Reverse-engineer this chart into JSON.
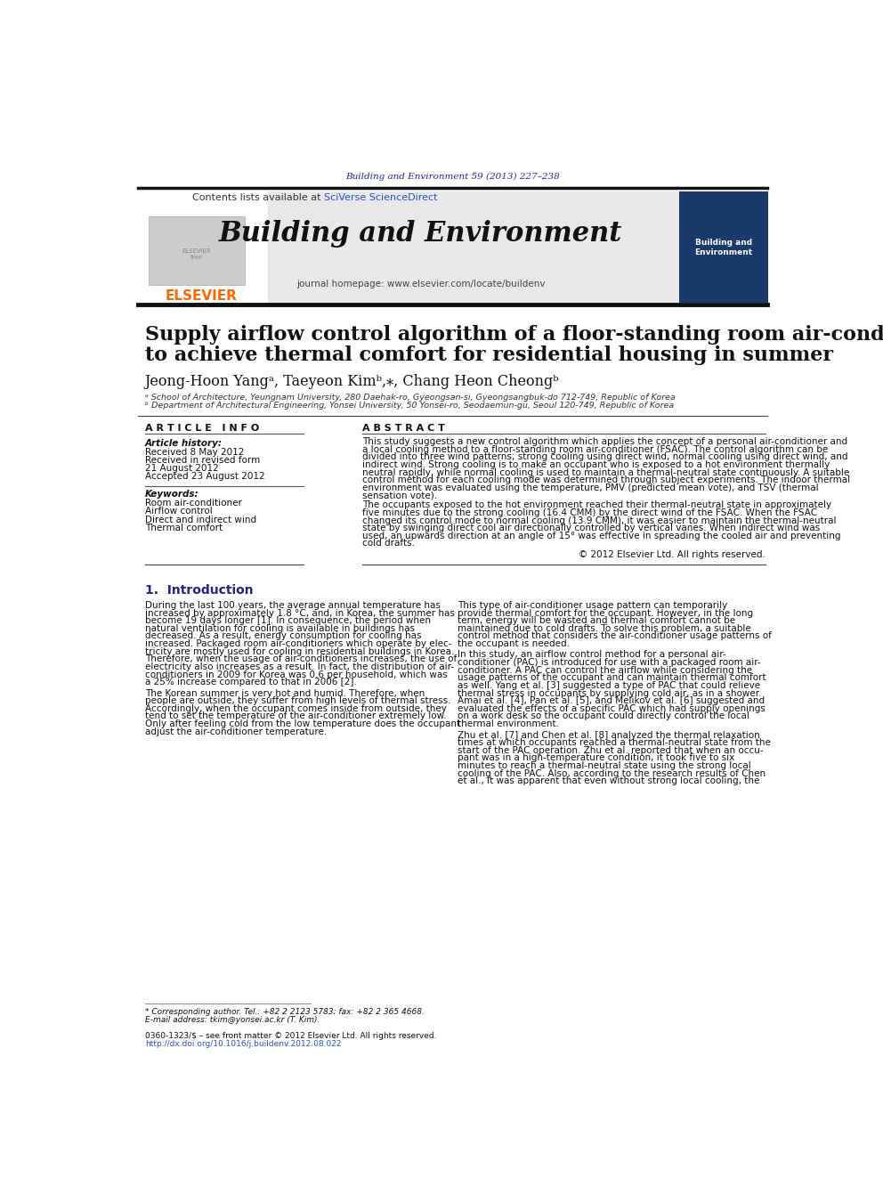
{
  "journal_ref": "Building and Environment 59 (2013) 227–238",
  "journal_name": "Building and Environment",
  "contents_line": "Contents lists available at SciVerse ScienceDirect",
  "journal_homepage": "journal homepage: www.elsevier.com/locate/buildenv",
  "paper_title_line1": "Supply airflow control algorithm of a floor-standing room air-conditioner",
  "paper_title_line2": "to achieve thermal comfort for residential housing in summer",
  "authors": "Jeong-Hoon Yangᵃ, Taeyeon Kimᵇ,⁎, Chang Heon Cheongᵇ",
  "affil_a": "ᵃ School of Architecture, Yeungnam University, 280 Daehak-ro, Gyeongsan-si, Gyeongsangbuk-do 712-749, Republic of Korea",
  "affil_b": "ᵇ Department of Architectural Engineering, Yonsei University, 50 Yonsei-ro, Seodaemun-gu, Seoul 120-749, Republic of Korea",
  "article_info_title": "A R T I C L E   I N F O",
  "article_history_label": "Article history:",
  "received": "Received 8 May 2012",
  "received_revised": "Received in revised form",
  "revised_date": "21 August 2012",
  "accepted": "Accepted 23 August 2012",
  "keywords_label": "Keywords:",
  "keywords": [
    "Room air-conditioner",
    "Airflow control",
    "Direct and indirect wind",
    "Thermal comfort"
  ],
  "abstract_title": "A B S T R A C T",
  "abstract_p1": "This study suggests a new control algorithm which applies the concept of a personal air-conditioner and\na local cooling method to a floor-standing room air-conditioner (FSAC). The control algorithm can be\ndivided into three wind patterns; strong cooling using direct wind, normal cooling using direct wind, and\nindirect wind. Strong cooling is to make an occupant who is exposed to a hot environment thermally\nneutral rapidly, while normal cooling is used to maintain a thermal-neutral state continuously. A suitable\ncontrol method for each cooling mode was determined through subject experiments. The indoor thermal\nenvironment was evaluated using the temperature, PMV (predicted mean vote), and TSV (thermal\nsensation vote).",
  "abstract_p2": "   The occupants exposed to the hot environment reached their thermal-neutral state in approximately\nfive minutes due to the strong cooling (16.4 CMM) by the direct wind of the FSAC. When the FSAC\nchanged its control mode to normal cooling (13.9 CMM), it was easier to maintain the thermal-neutral\nstate by swinging direct cool air directionally controlled by vertical vanes. When indirect wind was\nused, an upwards direction at an angle of 15° was effective in spreading the cooled air and preventing\ncold drafts.",
  "copyright": "© 2012 Elsevier Ltd. All rights reserved.",
  "section1_title": "1.  Introduction",
  "intro_col1_p1": "   During the last 100 years, the average annual temperature has\nincreased by approximately 1.8 °C, and, in Korea, the summer has\nbecome 19 days longer [1]. In consequence, the period when\nnatural ventilation for cooling is available in buildings has\ndecreased. As a result, energy consumption for cooling has\nincreased. Packaged room air-conditioners which operate by elec-\ntricity are mostly used for cooling in residential buildings in Korea.\nTherefore, when the usage of air-conditioners increases, the use of\nelectricity also increases as a result. In fact, the distribution of air-\nconditioners in 2009 for Korea was 0.6 per household, which was\na 25% increase compared to that in 2006 [2].",
  "intro_col1_p2": "   The Korean summer is very hot and humid. Therefore, when\npeople are outside, they suffer from high levels of thermal stress.\nAccordingly, when the occupant comes inside from outside, they\ntend to set the temperature of the air-conditioner extremely low.\nOnly after feeling cold from the low temperature does the occupant\nadjust the air-conditioner temperature.",
  "intro_col2_p1": "   This type of air-conditioner usage pattern can temporarily\nprovide thermal comfort for the occupant. However, in the long\nterm, energy will be wasted and thermal comfort cannot be\nmaintained due to cold drafts. To solve this problem, a suitable\ncontrol method that considers the air-conditioner usage patterns of\nthe occupant is needed.",
  "intro_col2_p2": "   In this study, an airflow control method for a personal air-\nconditioner (PAC) is introduced for use with a packaged room air-\nconditioner. A PAC can control the airflow while considering the\nusage patterns of the occupant and can maintain thermal comfort\nas well. Yang et al. [3] suggested a type of PAC that could relieve\nthermal stress in occupants by supplying cold air, as in a shower.\nAmai et al. [4], Pan et al. [5], and Melikov et al. [6] suggested and\nevaluated the effects of a specific PAC which had supply openings\non a work desk so the occupant could directly control the local\nthermal environment.",
  "intro_col2_p3": "   Zhu et al. [7] and Chen et al. [8] analyzed the thermal relaxation\ntimes at which occupants reached a thermal-neutral state from the\nstart of the PAC operation. Zhu et al. reported that when an occu-\npant was in a high-temperature condition, it took five to six\nminutes to reach a thermal-neutral state using the strong local\ncooling of the PAC. Also, according to the research results of Chen\net al., it was apparent that even without strong local cooling, the",
  "footnote_star": "* Corresponding author. Tel.: +82 2 2123 5783; fax: +82 2 365 4668.",
  "footnote_email": "E-mail address: tkim@yonsei.ac.kr (T. Kim).",
  "footer_issn": "0360-1323/$ – see front matter © 2012 Elsevier Ltd. All rights reserved.",
  "footer_doi": "http://dx.doi.org/10.1016/j.buildenv.2012.08.022",
  "bg_color": "#ffffff",
  "header_bg": "#e8e8e8",
  "journal_ref_color": "#2222aa",
  "sciverse_color": "#2255cc",
  "elsevier_color": "#ff6600",
  "link_color": "#2255cc",
  "section_color": "#222288",
  "top_bar_color": "#111111",
  "thin_bar_color": "#333333"
}
